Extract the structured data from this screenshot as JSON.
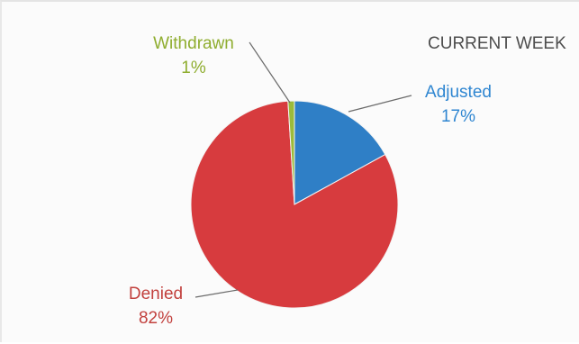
{
  "chart_data": {
    "type": "pie",
    "title": "CURRENT WEEK",
    "legend": "none",
    "slices": [
      {
        "name": "Adjusted",
        "label": "17%",
        "value": 17,
        "color": "#2f7fc6"
      },
      {
        "name": "Denied",
        "label": "82%",
        "value": 82,
        "color": "#d73b3e"
      },
      {
        "name": "Withdrawn",
        "label": "1%",
        "value": 1,
        "color": "#9bbb3a"
      }
    ],
    "label_colors": {
      "Adjusted": "#2f86d1",
      "Denied": "#c2413e",
      "Withdrawn": "#8fad2f"
    }
  }
}
